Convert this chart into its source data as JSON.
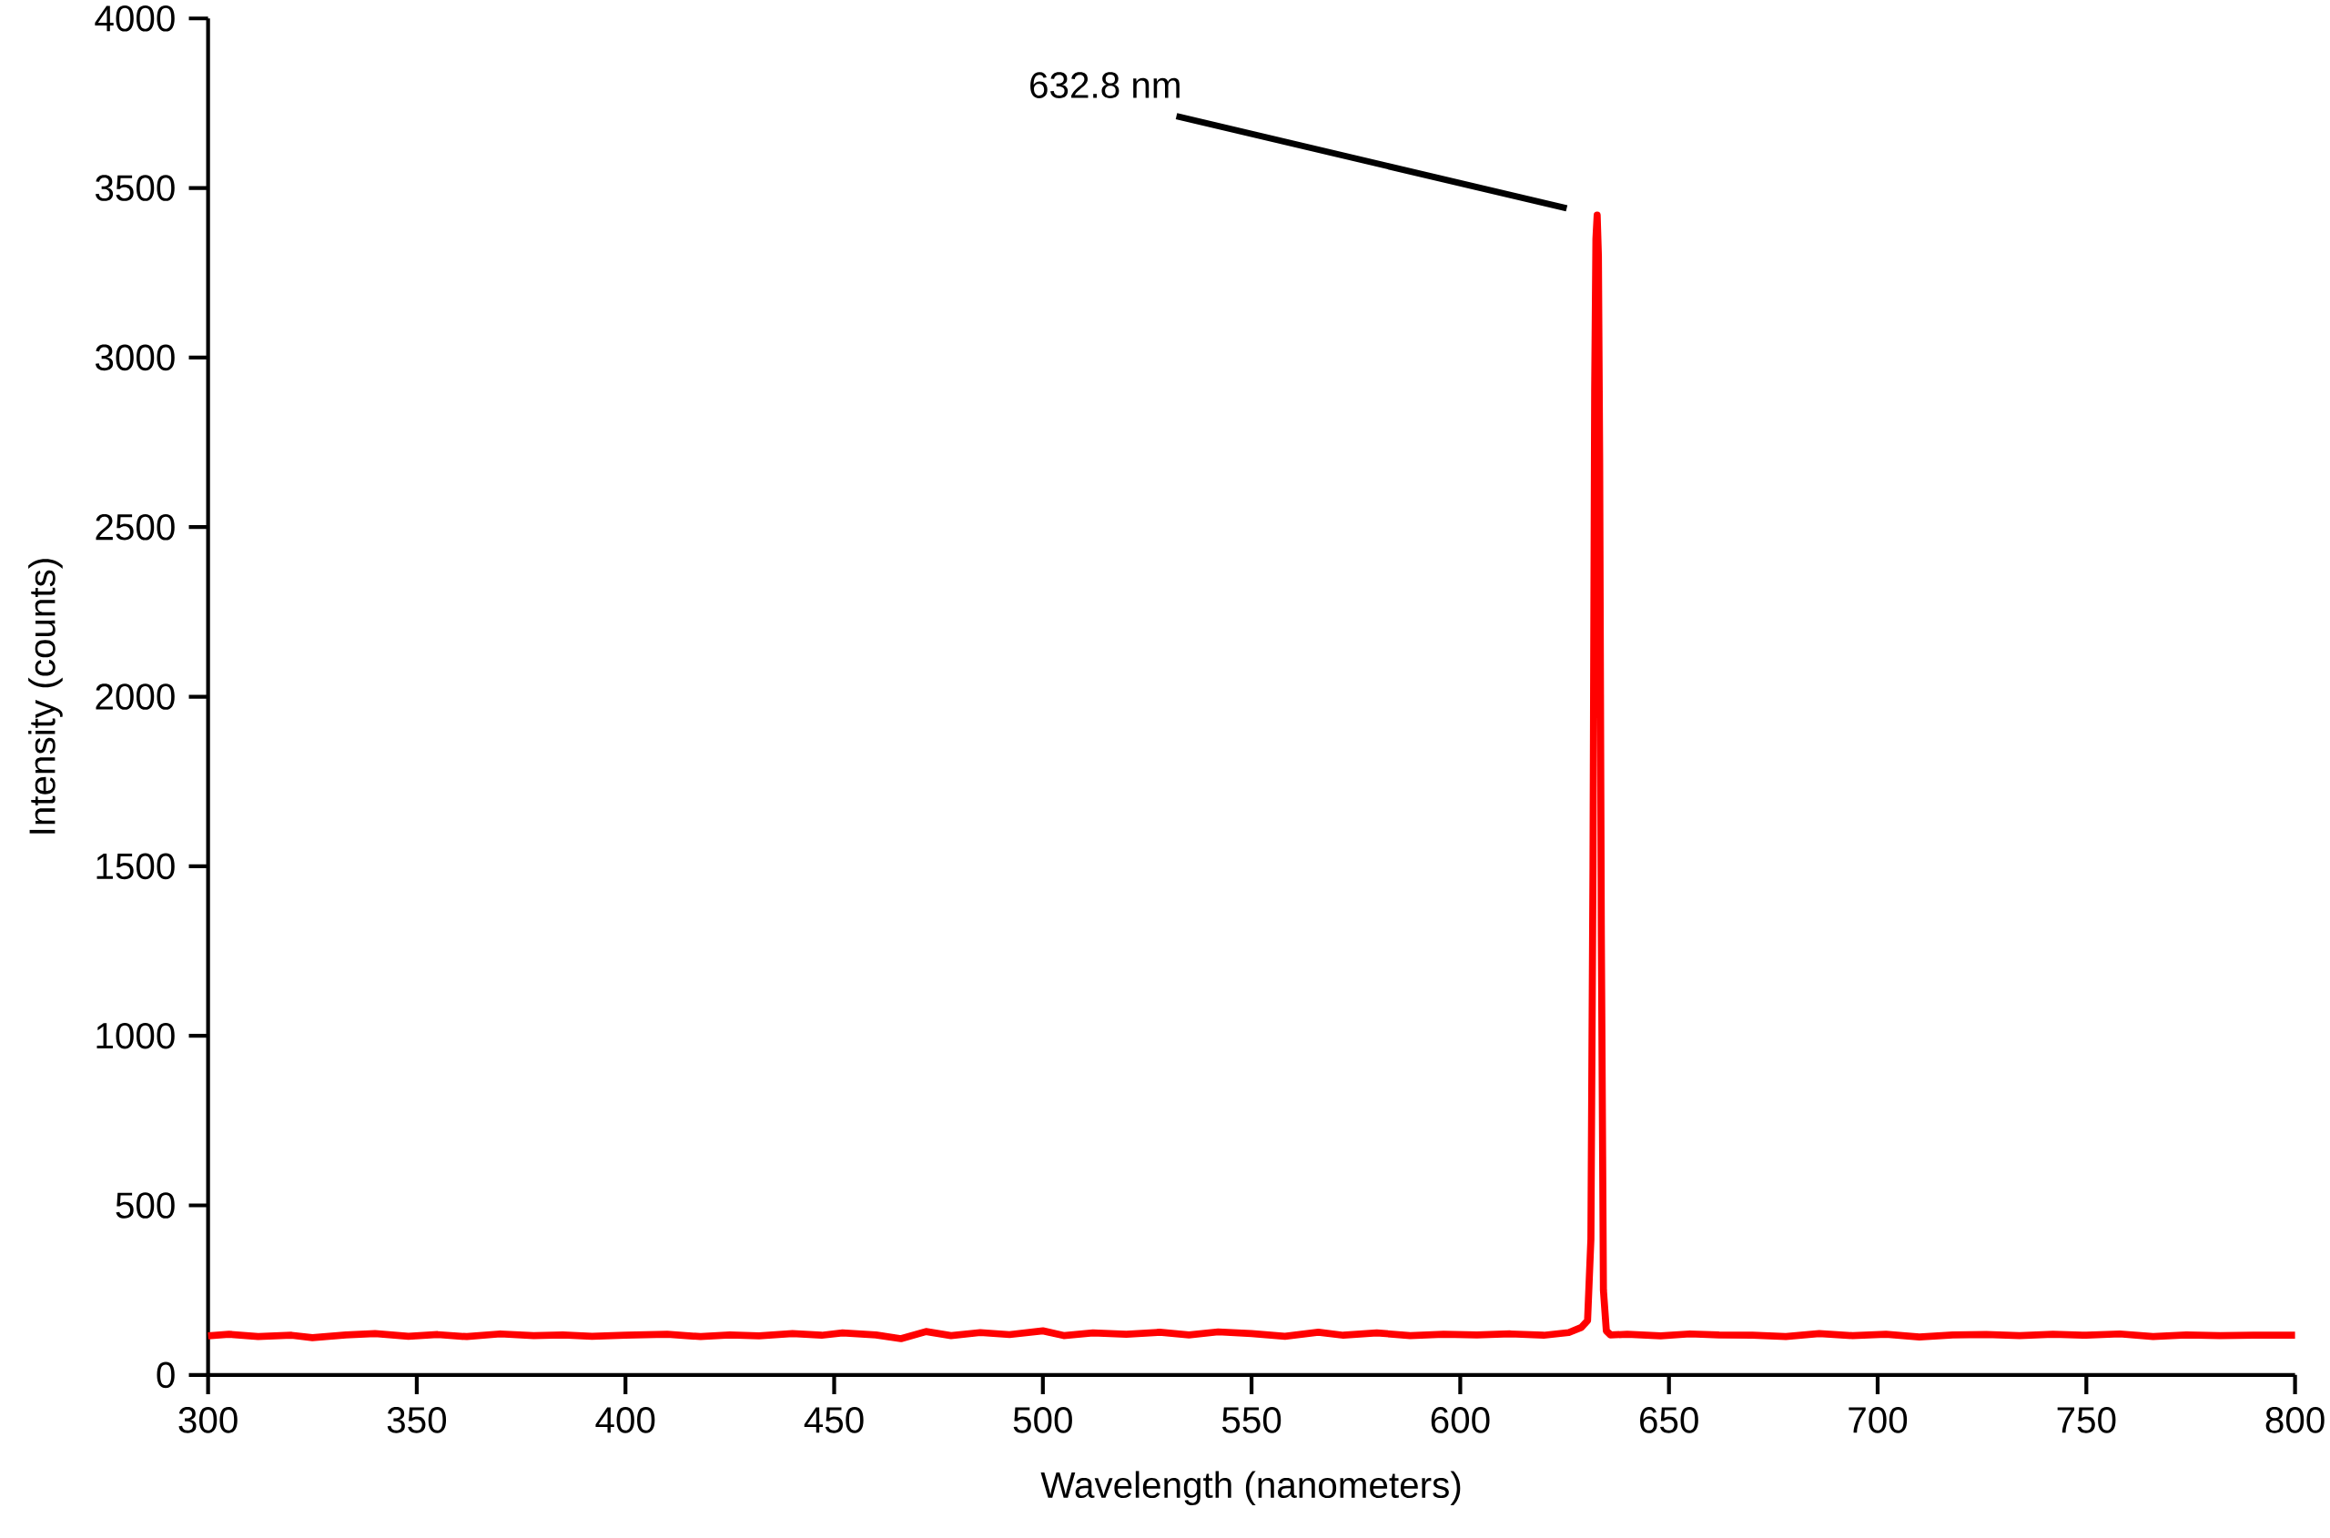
{
  "chart_data": {
    "type": "line",
    "xlabel": "Wavelength (nanometers)",
    "ylabel": "Intensity (counts)",
    "x": [
      300,
      305,
      312,
      320,
      325,
      333,
      340,
      348,
      355,
      362,
      370,
      378,
      385,
      392,
      400,
      410,
      418,
      425,
      432,
      440,
      447,
      452,
      460,
      466,
      472,
      478,
      485,
      492,
      500,
      505,
      512,
      520,
      528,
      535,
      542,
      550,
      558,
      566,
      572,
      580,
      588,
      596,
      604,
      612,
      620,
      626,
      629,
      630.5,
      631.3,
      631.8,
      632.2,
      632.5,
      632.8,
      633.1,
      633.4,
      633.8,
      634.3,
      635,
      636,
      640,
      648,
      655,
      662,
      670,
      678,
      686,
      694,
      702,
      710,
      718,
      726,
      734,
      742,
      750,
      758,
      766,
      774,
      782,
      790,
      800
    ],
    "series": [
      {
        "color": "#ff0000",
        "values": [
          115,
          120,
          113,
          117,
          110,
          118,
          122,
          114,
          119,
          113,
          121,
          116,
          118,
          114,
          117,
          120,
          113,
          118,
          115,
          122,
          117,
          124,
          118,
          107,
          128,
          116,
          125,
          119,
          130,
          116,
          124,
          120,
          126,
          118,
          127,
          122,
          114,
          126,
          117,
          124,
          116,
          120,
          118,
          121,
          117,
          125,
          140,
          160,
          400,
          1500,
          2900,
          3350,
          3420,
          3300,
          2700,
          1300,
          250,
          130,
          118,
          120,
          115,
          121,
          118,
          117,
          113,
          122,
          116,
          120,
          112,
          118,
          119,
          116,
          120,
          117,
          121,
          113,
          118,
          116,
          117,
          117
        ]
      }
    ],
    "xlim": [
      300,
      800
    ],
    "ylim": [
      0,
      4000
    ],
    "xticks": [
      300,
      350,
      400,
      450,
      500,
      550,
      600,
      650,
      700,
      750,
      800
    ],
    "yticks": [
      0,
      500,
      1000,
      1500,
      2000,
      2500,
      3000,
      3500,
      4000
    ],
    "annotations": [
      "632.8 nm"
    ],
    "grid": false,
    "marker": "none",
    "line_style": "solid"
  }
}
